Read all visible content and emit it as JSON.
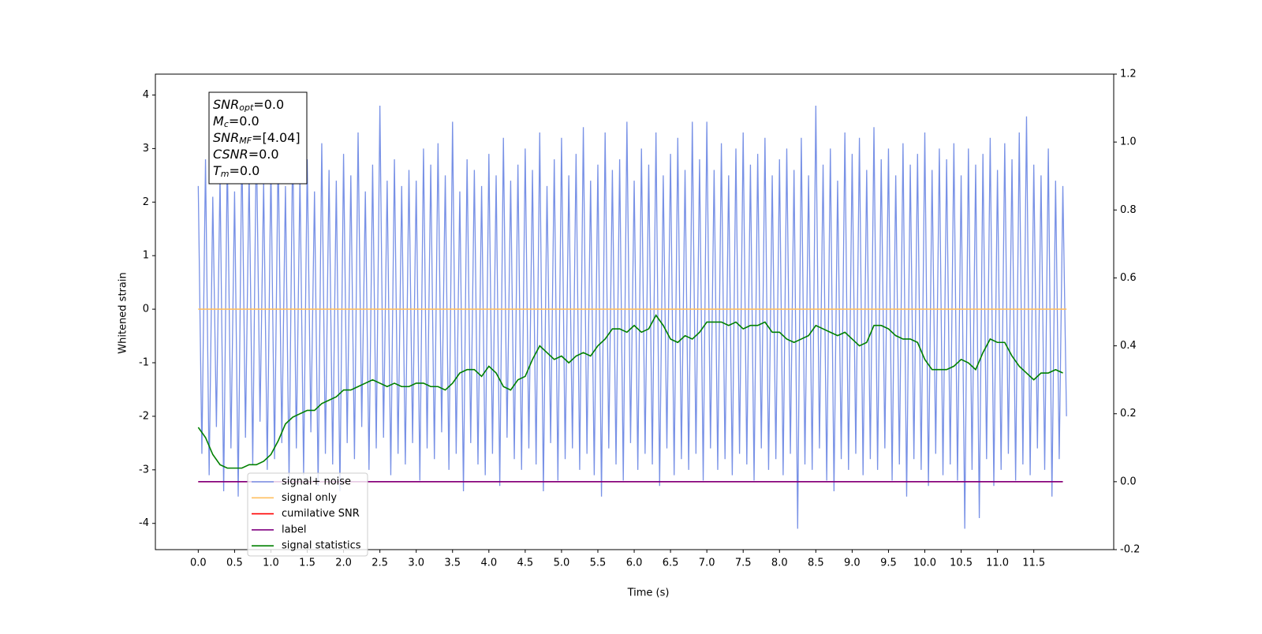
{
  "chart_data": {
    "type": "line",
    "xlabel": "Time (s)",
    "ylabel": "Whitened strain",
    "xlim": [
      -0.59,
      12.6
    ],
    "ylim": [
      -4.49,
      4.39
    ],
    "y2lim": [
      -0.2,
      1.2
    ],
    "xticks": [
      {
        "value": 0,
        "label": "0.0"
      },
      {
        "value": 0.5,
        "label": "0.5"
      },
      {
        "value": 1,
        "label": "1.0"
      },
      {
        "value": 1.5,
        "label": "1.5"
      },
      {
        "value": 2,
        "label": "2.0"
      },
      {
        "value": 2.5,
        "label": "2.5"
      },
      {
        "value": 3,
        "label": "3.0"
      },
      {
        "value": 3.5,
        "label": "3.5"
      },
      {
        "value": 4,
        "label": "4.0"
      },
      {
        "value": 4.5,
        "label": "4.5"
      },
      {
        "value": 5,
        "label": "5.0"
      },
      {
        "value": 5.5,
        "label": "5.5"
      },
      {
        "value": 6,
        "label": "6.0"
      },
      {
        "value": 6.5,
        "label": "6.5"
      },
      {
        "value": 7,
        "label": "7.0"
      },
      {
        "value": 7.5,
        "label": "7.5"
      },
      {
        "value": 8,
        "label": "8.0"
      },
      {
        "value": 8.5,
        "label": "8.5"
      },
      {
        "value": 9,
        "label": "9.0"
      },
      {
        "value": 9.5,
        "label": "9.5"
      },
      {
        "value": 10,
        "label": "10.0"
      },
      {
        "value": 10.5,
        "label": "10.5"
      },
      {
        "value": 11,
        "label": "11.0"
      },
      {
        "value": 11.5,
        "label": "11.5"
      }
    ],
    "yticks": [
      -4,
      -3,
      -2,
      -1,
      0,
      1,
      2,
      3,
      4
    ],
    "y2ticks": [
      -0.2,
      {
        "value": 0,
        "label": "0.0"
      },
      0.2,
      0.4,
      0.6,
      0.8,
      {
        "value": 1,
        "label": "1.0"
      },
      1.2
    ],
    "legend_loc": "lower left",
    "text_box": [
      {
        "symbol": "SNR",
        "sub": "opt",
        "text": "=0.0"
      },
      {
        "symbol": "M",
        "sub": "c",
        "text": "=0.0"
      },
      {
        "symbol": "SNR",
        "sub": "MF",
        "text": "=[4.04]"
      },
      {
        "symbol": "CSNR",
        "sub": "",
        "text": "=0.0"
      },
      {
        "symbol": "T",
        "sub": "m",
        "text": "=0.0"
      }
    ],
    "series": [
      {
        "name": "signal+ noise",
        "color": "#7891e6",
        "x": [
          0,
          0.05,
          0.1,
          0.15,
          0.2,
          0.25,
          0.3,
          0.35,
          0.4,
          0.45,
          0.5,
          0.55,
          0.6,
          0.65,
          0.7,
          0.75,
          0.8,
          0.85,
          0.9,
          0.95,
          1,
          1.05,
          1.1,
          1.15,
          1.2,
          1.25,
          1.3,
          1.35,
          1.4,
          1.45,
          1.5,
          1.55,
          1.6,
          1.65,
          1.7,
          1.75,
          1.8,
          1.85,
          1.9,
          1.95,
          2,
          2.05,
          2.1,
          2.15,
          2.2,
          2.25,
          2.3,
          2.35,
          2.4,
          2.45,
          2.5,
          2.55,
          2.6,
          2.65,
          2.7,
          2.75,
          2.8,
          2.85,
          2.9,
          2.95,
          3,
          3.05,
          3.1,
          3.15,
          3.2,
          3.25,
          3.3,
          3.35,
          3.4,
          3.45,
          3.5,
          3.55,
          3.6,
          3.65,
          3.7,
          3.75,
          3.8,
          3.85,
          3.9,
          3.95,
          4,
          4.05,
          4.1,
          4.15,
          4.2,
          4.25,
          4.3,
          4.35,
          4.4,
          4.45,
          4.5,
          4.55,
          4.6,
          4.65,
          4.7,
          4.75,
          4.8,
          4.85,
          4.9,
          4.95,
          5,
          5.05,
          5.1,
          5.15,
          5.2,
          5.25,
          5.3,
          5.35,
          5.4,
          5.45,
          5.5,
          5.55,
          5.6,
          5.65,
          5.7,
          5.75,
          5.8,
          5.85,
          5.9,
          5.95,
          6,
          6.05,
          6.1,
          6.15,
          6.2,
          6.25,
          6.3,
          6.35,
          6.4,
          6.45,
          6.5,
          6.55,
          6.6,
          6.65,
          6.7,
          6.75,
          6.8,
          6.85,
          6.9,
          6.95,
          7,
          7.05,
          7.1,
          7.15,
          7.2,
          7.25,
          7.3,
          7.35,
          7.4,
          7.45,
          7.5,
          7.55,
          7.6,
          7.65,
          7.7,
          7.75,
          7.8,
          7.85,
          7.9,
          7.95,
          8,
          8.05,
          8.1,
          8.15,
          8.2,
          8.25,
          8.3,
          8.35,
          8.4,
          8.45,
          8.5,
          8.55,
          8.6,
          8.65,
          8.7,
          8.75,
          8.8,
          8.85,
          8.9,
          8.95,
          9,
          9.05,
          9.1,
          9.15,
          9.2,
          9.25,
          9.3,
          9.35,
          9.4,
          9.45,
          9.5,
          9.55,
          9.6,
          9.65,
          9.7,
          9.75,
          9.8,
          9.85,
          9.9,
          9.95,
          10,
          10.05,
          10.1,
          10.15,
          10.2,
          10.25,
          10.3,
          10.35,
          10.4,
          10.45,
          10.5,
          10.55,
          10.6,
          10.65,
          10.7,
          10.75,
          10.8,
          10.85,
          10.9,
          10.95,
          11,
          11.05,
          11.1,
          11.15,
          11.2,
          11.25,
          11.3,
          11.35,
          11.4,
          11.45,
          11.5,
          11.55,
          11.6,
          11.65,
          11.7,
          11.75,
          11.8,
          11.85,
          11.9,
          11.95
        ],
        "values": [
          2.3,
          -2.7,
          2.8,
          -3.1,
          2.1,
          -2.2,
          2.5,
          -3.4,
          2.9,
          -2.6,
          2.2,
          -3.5,
          3.1,
          -2.4,
          2.6,
          -2.9,
          3.3,
          -2.1,
          2.4,
          -3.0,
          2.7,
          -2.8,
          3.0,
          -2.5,
          2.3,
          -3.2,
          3.2,
          -2.6,
          2.5,
          -3.1,
          2.8,
          -2.3,
          2.2,
          -3.3,
          3.1,
          -2.7,
          2.6,
          -2.9,
          2.4,
          -3.4,
          2.9,
          -2.5,
          2.5,
          -2.8,
          3.3,
          -2.2,
          2.2,
          -3.0,
          2.7,
          -2.6,
          3.8,
          -2.4,
          2.4,
          -3.1,
          2.8,
          -2.7,
          2.3,
          -2.9,
          2.6,
          -2.5,
          2.4,
          -3.2,
          3.0,
          -2.6,
          2.7,
          -2.8,
          3.1,
          -2.3,
          2.5,
          -3.0,
          3.5,
          -2.7,
          2.2,
          -3.4,
          2.8,
          -2.5,
          2.6,
          -2.9,
          2.3,
          -3.1,
          2.9,
          -2.7,
          2.5,
          -3.3,
          3.2,
          -2.4,
          2.4,
          -2.8,
          2.7,
          -3.0,
          3.0,
          -2.6,
          2.6,
          -2.9,
          3.3,
          -3.4,
          2.3,
          -2.5,
          2.8,
          -3.2,
          3.2,
          -2.8,
          2.5,
          -2.6,
          2.9,
          -3.0,
          3.4,
          -2.7,
          2.4,
          -3.1,
          2.7,
          -3.5,
          3.3,
          -2.6,
          2.6,
          -2.9,
          2.8,
          -3.2,
          3.5,
          -2.5,
          2.4,
          -3.0,
          3.0,
          -2.7,
          2.7,
          -2.9,
          3.3,
          -3.3,
          2.5,
          -2.6,
          2.9,
          -3.1,
          3.2,
          -2.8,
          2.6,
          -3.0,
          3.5,
          -2.7,
          2.8,
          -3.2,
          3.5,
          -2.6,
          2.6,
          -3.0,
          3.1,
          -2.8,
          2.5,
          -3.1,
          3.0,
          -2.7,
          3.3,
          -2.9,
          2.7,
          -3.2,
          2.9,
          -2.6,
          3.2,
          -3.0,
          2.5,
          -2.8,
          2.8,
          -3.1,
          3.0,
          -2.7,
          2.6,
          -4.1,
          3.2,
          -2.9,
          2.5,
          -3.0,
          3.8,
          -2.6,
          2.7,
          -3.2,
          3.0,
          -3.4,
          2.4,
          -2.8,
          3.3,
          -3.0,
          2.9,
          -2.7,
          3.2,
          -3.1,
          2.6,
          -2.8,
          3.4,
          -3.0,
          2.8,
          -2.6,
          3.0,
          -3.2,
          2.5,
          -2.9,
          3.1,
          -3.5,
          2.7,
          -2.8,
          2.9,
          -3.0,
          3.3,
          -3.3,
          2.6,
          -2.7,
          3.0,
          -3.1,
          2.8,
          -2.9,
          3.1,
          -3.2,
          2.5,
          -4.1,
          3.0,
          -3.0,
          2.7,
          -3.9,
          2.9,
          -2.8,
          3.2,
          -3.3,
          2.6,
          -3.0,
          3.1,
          -2.7,
          2.8,
          -3.2,
          3.3,
          -2.9,
          3.6,
          -3.1,
          2.7,
          -2.6,
          2.5,
          -3.0,
          3.0,
          -3.5,
          2.4,
          -2.8,
          2.3,
          -2.0
        ]
      },
      {
        "name": "signal only",
        "color": "#ffbf60",
        "x": [
          0,
          11.95
        ],
        "values": [
          0,
          0
        ]
      },
      {
        "name": "cumilative SNR",
        "color": "#ff0000",
        "axis": "y2",
        "x": [
          0,
          11.9
        ],
        "values": [
          0,
          0
        ]
      },
      {
        "name": "label",
        "color": "#800080",
        "axis": "y2",
        "x": [
          0,
          11.9
        ],
        "values": [
          0,
          0
        ]
      },
      {
        "name": "signal statistics",
        "color": "#008000",
        "axis": "y2",
        "x": [
          0,
          0.1,
          0.2,
          0.3,
          0.4,
          0.5,
          0.6,
          0.7,
          0.8,
          0.9,
          1,
          1.1,
          1.2,
          1.3,
          1.4,
          1.5,
          1.6,
          1.7,
          1.8,
          1.9,
          2,
          2.1,
          2.2,
          2.3,
          2.4,
          2.5,
          2.6,
          2.7,
          2.8,
          2.9,
          3,
          3.1,
          3.2,
          3.3,
          3.4,
          3.5,
          3.6,
          3.7,
          3.8,
          3.9,
          4,
          4.1,
          4.2,
          4.3,
          4.4,
          4.5,
          4.6,
          4.7,
          4.8,
          4.9,
          5,
          5.1,
          5.2,
          5.3,
          5.4,
          5.5,
          5.6,
          5.7,
          5.8,
          5.9,
          6,
          6.1,
          6.2,
          6.3,
          6.4,
          6.5,
          6.6,
          6.7,
          6.8,
          6.9,
          7,
          7.1,
          7.2,
          7.3,
          7.4,
          7.5,
          7.6,
          7.7,
          7.8,
          7.9,
          8,
          8.1,
          8.2,
          8.3,
          8.4,
          8.5,
          8.6,
          8.7,
          8.8,
          8.9,
          9,
          9.1,
          9.2,
          9.3,
          9.4,
          9.5,
          9.6,
          9.7,
          9.8,
          9.9,
          10,
          10.1,
          10.2,
          10.3,
          10.4,
          10.5,
          10.6,
          10.7,
          10.8,
          10.9,
          11,
          11.1,
          11.2,
          11.3,
          11.4,
          11.5,
          11.6,
          11.7,
          11.8,
          11.9
        ],
        "values": [
          0.16,
          0.13,
          0.08,
          0.05,
          0.04,
          0.04,
          0.04,
          0.05,
          0.05,
          0.06,
          0.08,
          0.12,
          0.17,
          0.19,
          0.2,
          0.21,
          0.21,
          0.23,
          0.24,
          0.25,
          0.27,
          0.27,
          0.28,
          0.29,
          0.3,
          0.29,
          0.28,
          0.29,
          0.28,
          0.28,
          0.29,
          0.29,
          0.28,
          0.28,
          0.27,
          0.29,
          0.32,
          0.33,
          0.33,
          0.31,
          0.34,
          0.32,
          0.28,
          0.27,
          0.3,
          0.31,
          0.36,
          0.4,
          0.38,
          0.36,
          0.37,
          0.35,
          0.37,
          0.38,
          0.37,
          0.4,
          0.42,
          0.45,
          0.45,
          0.44,
          0.46,
          0.44,
          0.45,
          0.49,
          0.46,
          0.42,
          0.41,
          0.43,
          0.42,
          0.44,
          0.47,
          0.47,
          0.47,
          0.46,
          0.47,
          0.45,
          0.46,
          0.46,
          0.47,
          0.44,
          0.44,
          0.42,
          0.41,
          0.42,
          0.43,
          0.46,
          0.45,
          0.44,
          0.43,
          0.44,
          0.42,
          0.4,
          0.41,
          0.46,
          0.46,
          0.45,
          0.43,
          0.42,
          0.42,
          0.41,
          0.36,
          0.33,
          0.33,
          0.33,
          0.34,
          0.36,
          0.35,
          0.33,
          0.38,
          0.42,
          0.41,
          0.41,
          0.37,
          0.34,
          0.32,
          0.3,
          0.32,
          0.32,
          0.33,
          0.32
        ]
      }
    ]
  }
}
